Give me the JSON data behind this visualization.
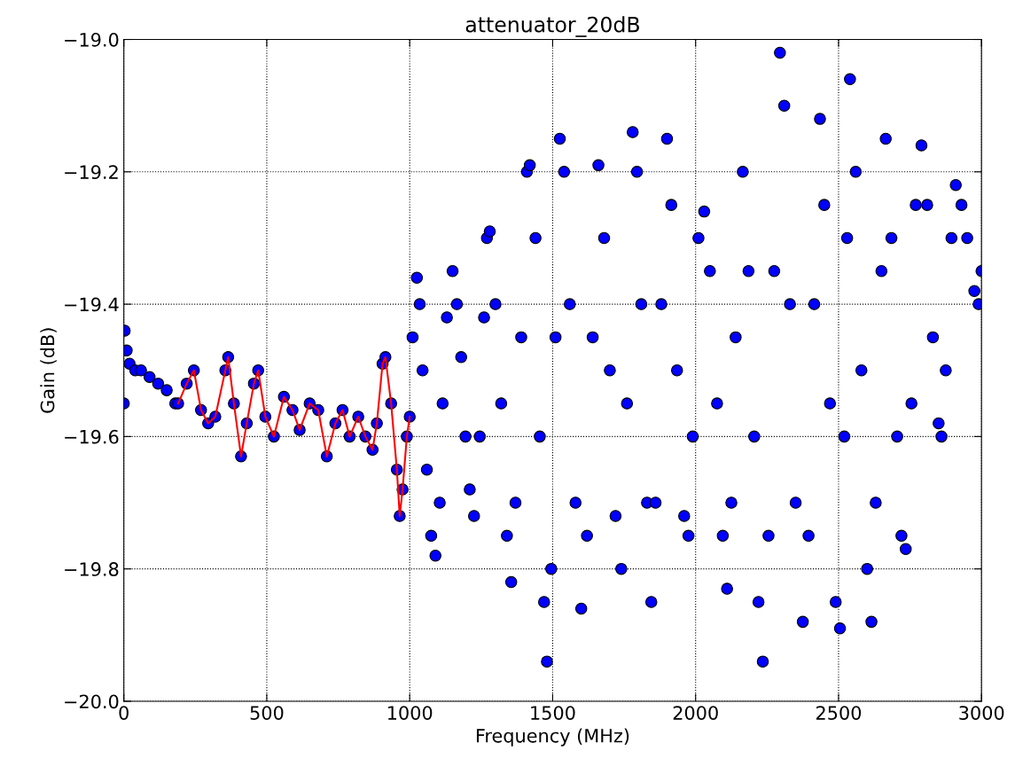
{
  "chart_data": {
    "type": "scatter",
    "title": "attenuator_20dB",
    "xlabel": "Frequency (MHz)",
    "ylabel": "Gain (dB)",
    "xlim": [
      0,
      3000
    ],
    "ylim": [
      -20.0,
      -19.0
    ],
    "xticks": [
      0,
      500,
      1000,
      1500,
      2000,
      2500,
      3000
    ],
    "yticks": [
      {
        "value": -20.0,
        "label": "−20.0"
      },
      {
        "value": -19.8,
        "label": "−19.8"
      },
      {
        "value": -19.6,
        "label": "−19.6"
      },
      {
        "value": -19.4,
        "label": "−19.4"
      },
      {
        "value": -19.2,
        "label": "−19.2"
      },
      {
        "value": -19.0,
        "label": "−19.0"
      }
    ],
    "grid": true,
    "series": [
      {
        "type": "scatter",
        "marker": "circle",
        "color": "#0000ff",
        "x": [
          0,
          3,
          10,
          20,
          40,
          60,
          90,
          120,
          150,
          180,
          190,
          220,
          245,
          270,
          295,
          320,
          355,
          365,
          385,
          410,
          430,
          455,
          470,
          495,
          525,
          560,
          590,
          615,
          650,
          680,
          710,
          740,
          765,
          790,
          820,
          845,
          870,
          885,
          905,
          915,
          935,
          955,
          965,
          975,
          990,
          1000,
          1010,
          1025,
          1035,
          1045,
          1060,
          1075,
          1090,
          1105,
          1115,
          1130,
          1150,
          1165,
          1180,
          1195,
          1210,
          1225,
          1245,
          1260,
          1270,
          1280,
          1300,
          1320,
          1340,
          1355,
          1370,
          1390,
          1410,
          1420,
          1440,
          1455,
          1470,
          1480,
          1495,
          1510,
          1525,
          1540,
          1560,
          1580,
          1600,
          1620,
          1640,
          1660,
          1680,
          1700,
          1720,
          1740,
          1760,
          1780,
          1795,
          1810,
          1830,
          1845,
          1860,
          1880,
          1900,
          1915,
          1935,
          1960,
          1975,
          1990,
          2010,
          2030,
          2050,
          2075,
          2095,
          2110,
          2125,
          2140,
          2165,
          2185,
          2205,
          2220,
          2235,
          2255,
          2275,
          2295,
          2310,
          2330,
          2350,
          2375,
          2395,
          2415,
          2435,
          2450,
          2470,
          2490,
          2505,
          2520,
          2530,
          2540,
          2560,
          2580,
          2600,
          2615,
          2630,
          2650,
          2665,
          2685,
          2705,
          2720,
          2735,
          2755,
          2770,
          2790,
          2810,
          2830,
          2850,
          2860,
          2875,
          2895,
          2910,
          2930,
          2950,
          2975,
          2990,
          3000
        ],
        "values": [
          -19.55,
          -19.44,
          -19.47,
          -19.49,
          -19.5,
          -19.5,
          -19.51,
          -19.52,
          -19.53,
          -19.55,
          -19.55,
          -19.52,
          -19.5,
          -19.56,
          -19.58,
          -19.57,
          -19.5,
          -19.48,
          -19.55,
          -19.63,
          -19.58,
          -19.52,
          -19.5,
          -19.57,
          -19.6,
          -19.54,
          -19.56,
          -19.59,
          -19.55,
          -19.56,
          -19.63,
          -19.58,
          -19.56,
          -19.6,
          -19.57,
          -19.6,
          -19.62,
          -19.58,
          -19.49,
          -19.48,
          -19.55,
          -19.65,
          -19.72,
          -19.68,
          -19.6,
          -19.57,
          -19.45,
          -19.36,
          -19.4,
          -19.5,
          -19.65,
          -19.75,
          -19.78,
          -19.7,
          -19.55,
          -19.42,
          -19.35,
          -19.4,
          -19.48,
          -19.6,
          -19.68,
          -19.72,
          -19.6,
          -19.42,
          -19.3,
          -19.29,
          -19.4,
          -19.55,
          -19.75,
          -19.82,
          -19.7,
          -19.45,
          -19.2,
          -19.19,
          -19.3,
          -19.6,
          -19.85,
          -19.94,
          -19.8,
          -19.45,
          -19.15,
          -19.2,
          -19.4,
          -19.7,
          -19.86,
          -19.75,
          -19.45,
          -19.19,
          -19.3,
          -19.5,
          -19.72,
          -19.8,
          -19.55,
          -19.14,
          -19.2,
          -19.4,
          -19.7,
          -19.85,
          -19.7,
          -19.4,
          -19.15,
          -19.25,
          -19.5,
          -19.72,
          -19.75,
          -19.6,
          -19.3,
          -19.26,
          -19.35,
          -19.55,
          -19.75,
          -19.83,
          -19.7,
          -19.45,
          -19.2,
          -19.35,
          -19.6,
          -19.85,
          -19.94,
          -19.75,
          -19.35,
          -19.02,
          -19.1,
          -19.4,
          -19.7,
          -19.88,
          -19.75,
          -19.4,
          -19.12,
          -19.25,
          -19.55,
          -19.85,
          -19.89,
          -19.6,
          -19.3,
          -19.06,
          -19.2,
          -19.5,
          -19.8,
          -19.88,
          -19.7,
          -19.35,
          -19.15,
          -19.3,
          -19.6,
          -19.75,
          -19.77,
          -19.55,
          -19.25,
          -19.16,
          -19.25,
          -19.45,
          -19.58,
          -19.6,
          -19.5,
          -19.3,
          -19.22,
          -19.25,
          -19.3,
          -19.38,
          -19.4,
          -19.35
        ]
      },
      {
        "type": "line",
        "marker": "none",
        "line_style": "solid",
        "color": "#ff0000",
        "x": [
          190,
          220,
          245,
          270,
          295,
          320,
          355,
          365,
          385,
          410,
          430,
          455,
          470,
          495,
          525,
          560,
          590,
          615,
          650,
          680,
          710,
          740,
          765,
          790,
          820,
          845,
          870,
          885,
          905,
          915,
          935,
          955,
          965,
          975,
          990,
          1000
        ],
        "values": [
          -19.55,
          -19.52,
          -19.5,
          -19.56,
          -19.58,
          -19.57,
          -19.5,
          -19.48,
          -19.55,
          -19.63,
          -19.58,
          -19.52,
          -19.5,
          -19.57,
          -19.6,
          -19.54,
          -19.56,
          -19.59,
          -19.55,
          -19.56,
          -19.63,
          -19.58,
          -19.56,
          -19.6,
          -19.57,
          -19.6,
          -19.62,
          -19.58,
          -19.49,
          -19.48,
          -19.55,
          -19.65,
          -19.72,
          -19.68,
          -19.6,
          -19.57
        ]
      }
    ]
  }
}
